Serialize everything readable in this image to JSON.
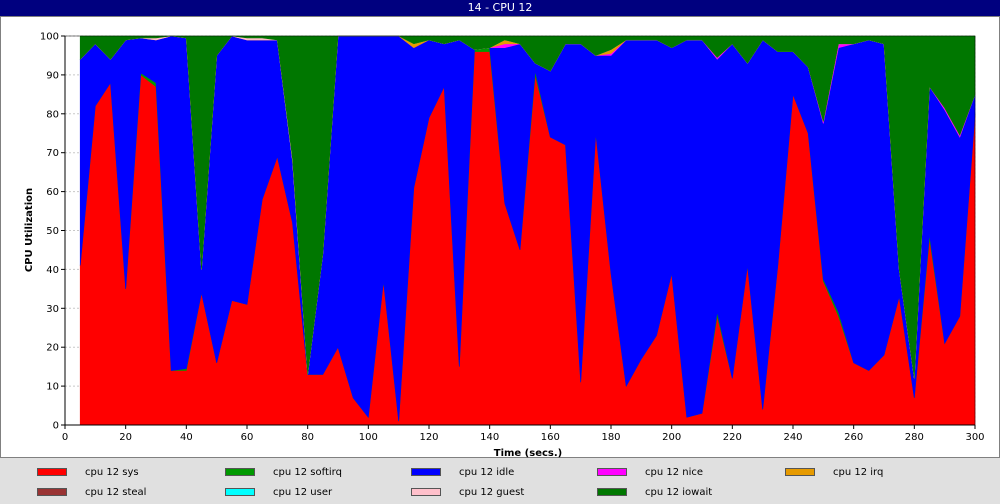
{
  "window": {
    "title": "14 - CPU 12"
  },
  "chart_data": {
    "type": "area",
    "stacked": true,
    "xlabel": "Time (secs.)",
    "ylabel": "CPU Utilization",
    "xlim": [
      0,
      300
    ],
    "ylim": [
      0,
      100
    ],
    "xticks": [
      0,
      20,
      40,
      60,
      80,
      100,
      120,
      140,
      160,
      180,
      200,
      220,
      240,
      260,
      280,
      300
    ],
    "yticks": [
      0,
      10,
      20,
      30,
      40,
      50,
      60,
      70,
      80,
      90,
      100
    ],
    "grid": true,
    "legend_position": "bottom",
    "x": [
      5,
      10,
      15,
      20,
      25,
      30,
      35,
      40,
      45,
      50,
      55,
      60,
      65,
      70,
      75,
      80,
      85,
      90,
      95,
      100,
      105,
      110,
      115,
      120,
      125,
      130,
      135,
      140,
      145,
      150,
      155,
      160,
      165,
      170,
      175,
      180,
      185,
      190,
      195,
      200,
      205,
      210,
      215,
      220,
      225,
      230,
      235,
      240,
      245,
      250,
      255,
      260,
      265,
      270,
      275,
      280,
      285,
      290,
      295,
      300
    ],
    "series": [
      {
        "name": "cpu 12 sys",
        "color": "#ff0000",
        "values": [
          41,
          82,
          88,
          35,
          90,
          87,
          14,
          14,
          34,
          16,
          32,
          31,
          58,
          69,
          52,
          13,
          13,
          20,
          7,
          2,
          37,
          1,
          61,
          79,
          87,
          15,
          96,
          96,
          57,
          45,
          90,
          74,
          72,
          11,
          75,
          39,
          10,
          17,
          23,
          39,
          2,
          3,
          28,
          12,
          41,
          4,
          41,
          85,
          75,
          37,
          28,
          16,
          14,
          18,
          33,
          7,
          48,
          21,
          28,
          80
        ]
      },
      {
        "name": "cpu 12 softirq",
        "color": "#009900",
        "values": [
          0,
          0,
          0,
          0,
          0.5,
          1,
          0,
          0.5,
          0,
          0,
          0,
          0,
          0,
          0,
          0,
          0,
          0,
          0,
          0,
          0,
          0,
          0,
          0,
          0,
          0,
          0,
          0.5,
          1,
          0,
          0,
          1,
          0,
          0,
          0,
          0,
          0,
          0,
          0,
          0,
          0,
          0,
          0,
          1,
          0,
          0,
          0,
          0,
          0,
          0,
          0.5,
          1,
          0,
          0,
          0,
          0,
          0,
          1,
          0,
          0,
          0
        ]
      },
      {
        "name": "cpu 12 idle",
        "color": "#0000ff",
        "values": [
          53,
          16,
          6,
          64,
          9,
          11,
          86,
          85,
          6,
          79,
          68,
          68,
          41,
          30,
          16,
          0,
          31,
          80,
          93,
          98,
          63,
          99,
          36,
          20,
          11,
          84,
          0,
          0,
          40,
          53,
          2,
          17,
          26,
          87,
          20,
          56,
          89,
          82,
          76,
          58,
          97,
          96,
          65,
          86,
          52,
          95,
          55,
          11,
          17,
          40,
          68,
          82,
          85,
          80,
          7,
          5,
          38,
          60,
          46,
          5
        ]
      },
      {
        "name": "cpu 12 nice",
        "color": "#ff00ff",
        "values": [
          0,
          0,
          0,
          0,
          0,
          0,
          0,
          0,
          0,
          0,
          0,
          0,
          0,
          0,
          0,
          0,
          0,
          0,
          0,
          0,
          0,
          0,
          0,
          0,
          0,
          0,
          0,
          0,
          1,
          0,
          0,
          0,
          0,
          0,
          0,
          0.5,
          0,
          0,
          0,
          0,
          0,
          0,
          0.5,
          0,
          0,
          0,
          0,
          0,
          0,
          0.5,
          1,
          0,
          0,
          0,
          0,
          0,
          0,
          0.5,
          0.5,
          0
        ]
      },
      {
        "name": "cpu 12 irq",
        "color": "#e69a00",
        "values": [
          0,
          0,
          0,
          0,
          0,
          0,
          0,
          0,
          0,
          0,
          0,
          0,
          0,
          0,
          0,
          0,
          0,
          0,
          0,
          0,
          0,
          0,
          1,
          0,
          0,
          0,
          0,
          0,
          1,
          0,
          0,
          0,
          0,
          0,
          0,
          1,
          0,
          0,
          0,
          0,
          0,
          0,
          0,
          0,
          0,
          0,
          0,
          0,
          0,
          0,
          0,
          0,
          0,
          0,
          0,
          0,
          0,
          0,
          0,
          0
        ]
      },
      {
        "name": "cpu 12 steal",
        "color": "#993333",
        "values": [
          0,
          0,
          0,
          0,
          0,
          0,
          0,
          0,
          0,
          0,
          0,
          0,
          0,
          0,
          0,
          0,
          0,
          0,
          0,
          0,
          0,
          0,
          0,
          0,
          0,
          0,
          0,
          0,
          0,
          0,
          0,
          0,
          0,
          0,
          0,
          0,
          0,
          0,
          0,
          0,
          0,
          0,
          0,
          0,
          0,
          0,
          0,
          0,
          0,
          0,
          0,
          0,
          0,
          0,
          0,
          0,
          0,
          0,
          0,
          0
        ]
      },
      {
        "name": "cpu 12 user",
        "color": "#00ffff",
        "values": [
          0,
          0,
          0,
          0,
          0,
          0,
          0,
          0,
          0,
          0,
          0,
          0,
          0,
          0,
          0,
          0,
          0,
          0,
          0,
          0,
          0,
          0,
          0,
          0,
          0,
          0,
          0,
          0,
          0,
          0,
          0,
          0,
          0,
          0,
          0,
          0,
          0,
          0,
          0,
          0,
          0,
          0,
          0,
          0,
          0,
          0,
          0,
          0,
          0,
          0,
          0,
          0,
          0,
          0,
          0,
          0,
          0,
          0,
          0,
          0
        ]
      },
      {
        "name": "cpu 12 guest",
        "color": "#ffc0cb",
        "values": [
          0,
          0,
          0,
          0,
          0,
          0.5,
          0,
          0,
          0,
          0,
          0,
          0.5,
          0.5,
          0,
          0.5,
          0,
          0,
          0,
          0,
          0,
          0,
          0,
          0,
          0,
          0,
          0,
          0,
          0,
          0,
          0,
          0,
          0,
          0,
          0,
          0,
          0,
          0,
          0,
          0,
          0,
          0,
          0,
          0,
          0,
          0,
          0,
          0,
          0,
          0,
          0,
          0,
          0,
          0,
          0,
          0,
          0,
          0,
          0,
          0,
          0
        ]
      },
      {
        "name": "cpu 12 iowait",
        "color": "#007700",
        "values": [
          6,
          2,
          6,
          1,
          0.5,
          1,
          0,
          0.5,
          60,
          5,
          0,
          0.5,
          0.5,
          1,
          31.5,
          87,
          56,
          0,
          0,
          0,
          0,
          0,
          2,
          1,
          2,
          1,
          3.5,
          3,
          1,
          2,
          7,
          9,
          2,
          2,
          5,
          3.5,
          1,
          1,
          1,
          3,
          1,
          1,
          5.5,
          2,
          7,
          1,
          4,
          4,
          8,
          22,
          2,
          2,
          1,
          2,
          60,
          88,
          13,
          18.5,
          25.5,
          15
        ]
      }
    ]
  }
}
